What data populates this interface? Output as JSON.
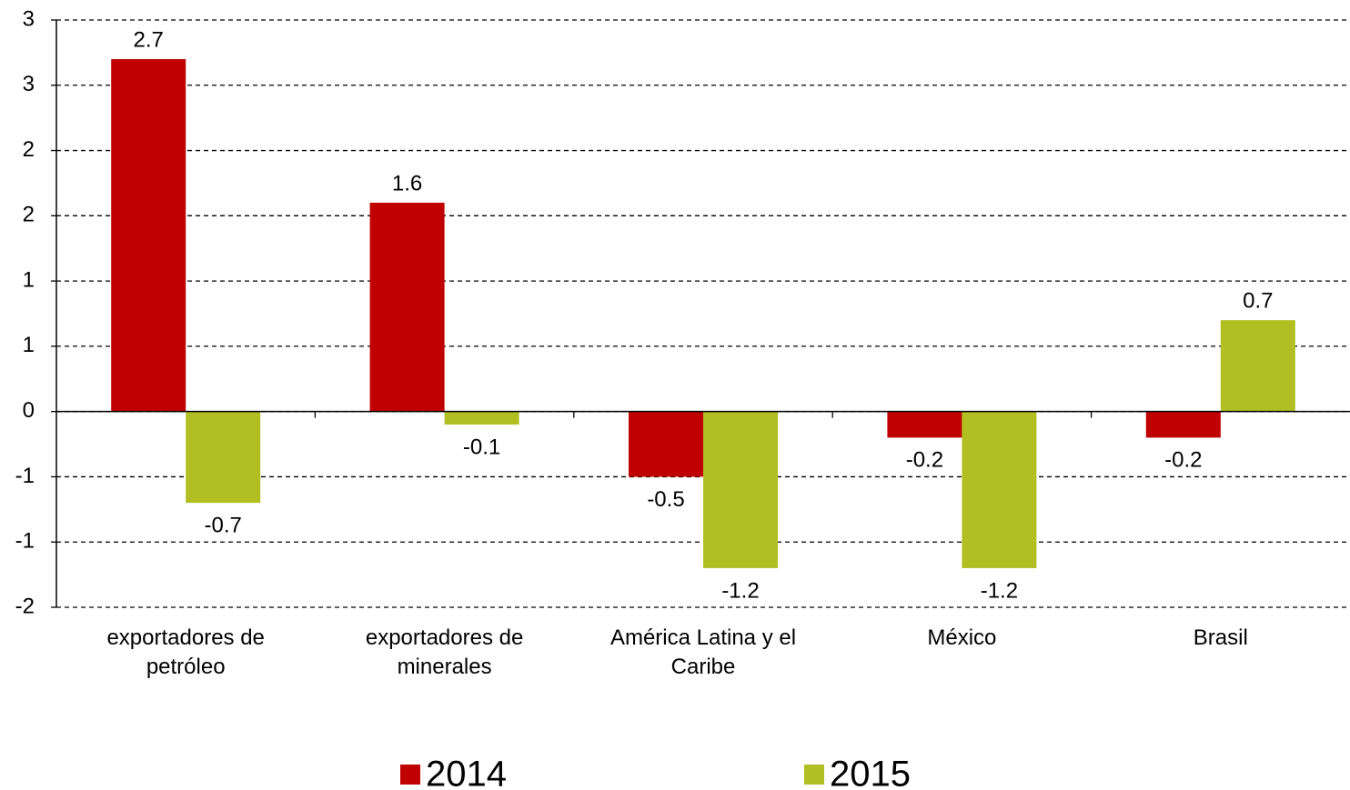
{
  "chart_data": {
    "type": "bar",
    "categories": [
      "exportadores de petróleo",
      "exportadores de minerales",
      "América Latina y el Caribe",
      "México",
      "Brasil"
    ],
    "series": [
      {
        "name": "2014",
        "color": "#c00000",
        "values": [
          2.7,
          1.6,
          -0.5,
          -0.2,
          -0.2
        ]
      },
      {
        "name": "2015",
        "color": "#b2bf22",
        "values": [
          -0.7,
          -0.1,
          -1.2,
          -1.2,
          0.7
        ]
      }
    ],
    "ylim": [
      -1.5,
      3
    ],
    "yticks": [
      {
        "value": -1.5,
        "label": "-2"
      },
      -1,
      {
        "value": -0.5,
        "label": "-1"
      },
      0,
      {
        "value": 0.5,
        "label": "1"
      },
      1,
      {
        "value": 1.5,
        "label": "2"
      },
      2,
      {
        "value": 2.5,
        "label": "3"
      },
      3
    ],
    "grid": true,
    "legend": "bottom"
  }
}
